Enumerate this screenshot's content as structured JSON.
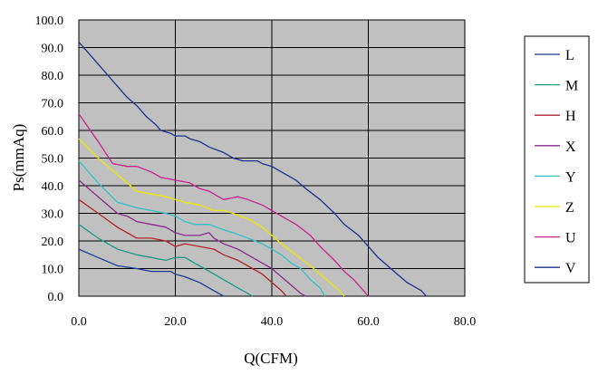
{
  "chart_data": {
    "type": "line",
    "xlabel": "Q(CFM)",
    "ylabel": "Ps(mmAq)",
    "xlim": [
      0,
      80
    ],
    "ylim": [
      0,
      100
    ],
    "x_ticks": [
      "0.0",
      "20.0",
      "40.0",
      "60.0",
      "80.0"
    ],
    "y_ticks": [
      "0.0",
      "10.0",
      "20.0",
      "30.0",
      "40.0",
      "50.0",
      "60.0",
      "70.0",
      "80.0",
      "90.0",
      "100.0"
    ],
    "grid": "vertical and horizontal",
    "plot_background": "#c0c0c0",
    "legend_position": "right",
    "series": [
      {
        "name": "L",
        "color": "#1f3a93",
        "x": [
          0,
          4,
          8,
          12,
          15,
          17,
          19,
          20,
          22,
          25,
          27,
          29,
          30
        ],
        "y": [
          17,
          14,
          11,
          10,
          9,
          9,
          9,
          8,
          7,
          5,
          3,
          1,
          0
        ]
      },
      {
        "name": "M",
        "color": "#1a9a86",
        "x": [
          0,
          4,
          8,
          12,
          15,
          18,
          20,
          22,
          24,
          26,
          28,
          30,
          33,
          35,
          36
        ],
        "y": [
          26,
          21,
          17,
          15,
          14,
          13,
          14,
          14,
          12,
          10,
          8,
          6,
          3,
          1,
          0
        ]
      },
      {
        "name": "H",
        "color": "#b3202f",
        "x": [
          0,
          4,
          8,
          12,
          15,
          18,
          20,
          22,
          25,
          28,
          30,
          33,
          36,
          38,
          40,
          42,
          43
        ],
        "y": [
          35,
          30,
          25,
          21,
          21,
          20,
          18,
          19,
          18,
          17,
          15,
          13,
          10,
          8,
          5,
          2,
          0
        ]
      },
      {
        "name": "X",
        "color": "#8a2a8a",
        "x": [
          0,
          4,
          8,
          10,
          12,
          15,
          18,
          20,
          22,
          25,
          27,
          28,
          30,
          33,
          36,
          38,
          40,
          42,
          44,
          46,
          47
        ],
        "y": [
          42,
          36,
          30,
          29,
          27,
          26,
          25,
          23,
          22,
          22,
          23,
          21,
          19,
          17,
          14,
          12,
          10,
          7,
          4,
          1,
          0
        ]
      },
      {
        "name": "Y",
        "color": "#33c2c2",
        "x": [
          0,
          4,
          8,
          12,
          15,
          18,
          20,
          22,
          24,
          27,
          30,
          32,
          35,
          38,
          40,
          42,
          44,
          46,
          48,
          50,
          51
        ],
        "y": [
          49,
          41,
          34,
          32,
          31,
          30,
          29,
          27,
          26,
          26,
          24,
          23,
          21,
          19,
          17,
          15,
          12,
          10,
          6,
          3,
          0
        ]
      },
      {
        "name": "Z",
        "color": "#e8e800",
        "x": [
          0,
          4,
          8,
          12,
          15,
          18,
          20,
          22,
          25,
          28,
          30,
          32,
          35,
          38,
          40,
          42,
          45,
          48,
          50,
          52,
          54,
          55
        ],
        "y": [
          57,
          50,
          44,
          38,
          37,
          36,
          35,
          34,
          33,
          31,
          31,
          30,
          28,
          25,
          22,
          19,
          15,
          11,
          8,
          5,
          2,
          0
        ]
      },
      {
        "name": "U",
        "color": "#c8238c",
        "x": [
          0,
          4,
          7,
          10,
          12,
          15,
          17,
          20,
          23,
          25,
          27,
          28,
          30,
          33,
          35,
          38,
          40,
          42,
          45,
          48,
          50,
          53,
          55,
          57,
          59,
          60
        ],
        "y": [
          66,
          56,
          48,
          47,
          47,
          45,
          43,
          42,
          41,
          39,
          38,
          37,
          35,
          36,
          35,
          33,
          31,
          29,
          26,
          22,
          18,
          13,
          9,
          6,
          2,
          0
        ]
      },
      {
        "name": "V",
        "color": "#1f2f8f",
        "x": [
          0,
          3,
          6,
          8,
          10,
          12,
          14,
          16,
          17,
          19,
          20,
          21,
          22,
          23,
          25,
          27,
          30,
          32,
          34,
          35,
          36,
          37,
          38,
          40,
          42,
          44,
          45,
          47,
          50,
          53,
          55,
          58,
          60,
          62,
          64,
          66,
          68,
          69,
          70,
          71,
          72
        ],
        "y": [
          92,
          86,
          80,
          76,
          72,
          69,
          65,
          62,
          60,
          59,
          58,
          58,
          58,
          57,
          56,
          54,
          52,
          50,
          49,
          49,
          49,
          49,
          48,
          47,
          45,
          43,
          42,
          39,
          35,
          30,
          26,
          22,
          18,
          14,
          11,
          8,
          5,
          4,
          3,
          2,
          0
        ]
      }
    ]
  }
}
